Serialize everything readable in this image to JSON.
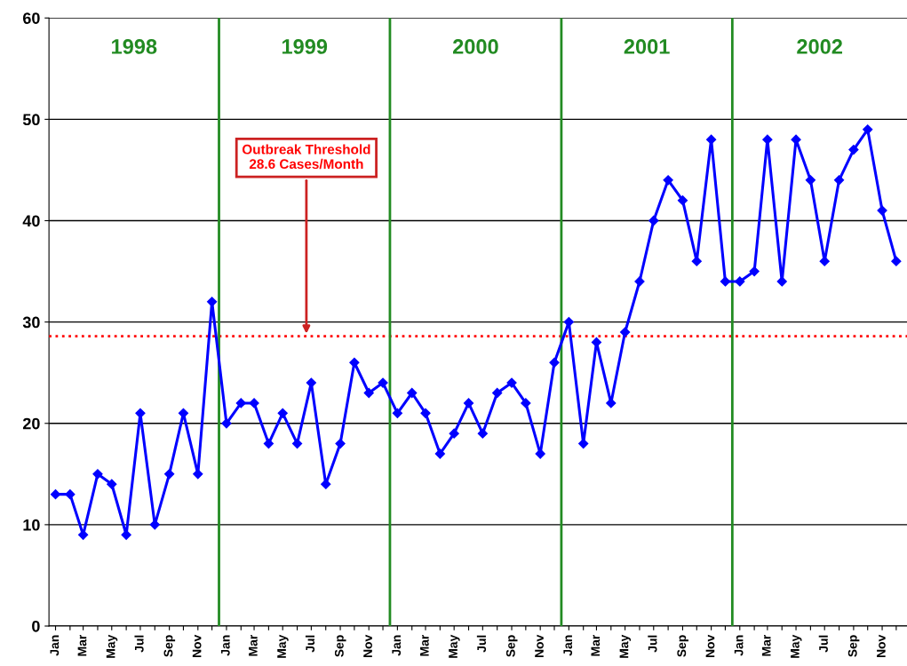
{
  "chart_data": {
    "type": "line",
    "x": [
      "1998-01",
      "1998-02",
      "1998-03",
      "1998-04",
      "1998-05",
      "1998-06",
      "1998-07",
      "1998-08",
      "1998-09",
      "1998-10",
      "1998-11",
      "1998-12",
      "1999-01",
      "1999-02",
      "1999-03",
      "1999-04",
      "1999-05",
      "1999-06",
      "1999-07",
      "1999-08",
      "1999-09",
      "1999-10",
      "1999-11",
      "1999-12",
      "2000-01",
      "2000-02",
      "2000-03",
      "2000-04",
      "2000-05",
      "2000-06",
      "2000-07",
      "2000-08",
      "2000-09",
      "2000-10",
      "2000-11",
      "2000-12",
      "2001-01",
      "2001-02",
      "2001-03",
      "2001-04",
      "2001-05",
      "2001-06",
      "2001-07",
      "2001-08",
      "2001-09",
      "2001-10",
      "2001-11",
      "2001-12",
      "2002-01",
      "2002-02",
      "2002-03",
      "2002-04",
      "2002-05",
      "2002-06",
      "2002-07",
      "2002-08",
      "2002-09",
      "2002-10",
      "2002-11",
      "2002-12"
    ],
    "series": [
      {
        "color": "#0000ff",
        "values": [
          13,
          13,
          9,
          15,
          14,
          9,
          21,
          10,
          15,
          21,
          15,
          32,
          20,
          22,
          22,
          18,
          21,
          18,
          24,
          14,
          18,
          26,
          23,
          24,
          21,
          23,
          21,
          17,
          19,
          22,
          19,
          23,
          24,
          22,
          17,
          26,
          30,
          18,
          28,
          22,
          29,
          34,
          40,
          44,
          42,
          36,
          48,
          34,
          34,
          35,
          48,
          34,
          48,
          44,
          36,
          44,
          47,
          49,
          41,
          36
        ]
      }
    ],
    "marker": "diamond",
    "line_style": "solid",
    "grid": "y",
    "legend": false,
    "xlim": [
      "1997-12-18",
      "2002-12-24"
    ],
    "xticks": [
      {
        "value": "1998-01",
        "label": "Jan"
      },
      {
        "value": "1998-02",
        "label": null
      },
      {
        "value": "1998-03",
        "label": "Mar"
      },
      {
        "value": "1998-04",
        "label": null
      },
      {
        "value": "1998-05",
        "label": "May"
      },
      {
        "value": "1998-06",
        "label": null
      },
      {
        "value": "1998-07",
        "label": "Jul"
      },
      {
        "value": "1998-08",
        "label": null
      },
      {
        "value": "1998-09",
        "label": "Sep"
      },
      {
        "value": "1998-10",
        "label": null
      },
      {
        "value": "1998-11",
        "label": "Nov"
      },
      {
        "value": "1998-12",
        "label": null
      },
      {
        "value": "1999-01",
        "label": "Jan"
      },
      {
        "value": "1999-02",
        "label": null
      },
      {
        "value": "1999-03",
        "label": "Mar"
      },
      {
        "value": "1999-04",
        "label": null
      },
      {
        "value": "1999-05",
        "label": "May"
      },
      {
        "value": "1999-06",
        "label": null
      },
      {
        "value": "1999-07",
        "label": "Jul"
      },
      {
        "value": "1999-08",
        "label": null
      },
      {
        "value": "1999-09",
        "label": "Sep"
      },
      {
        "value": "1999-10",
        "label": null
      },
      {
        "value": "1999-11",
        "label": "Nov"
      },
      {
        "value": "1999-12",
        "label": null
      },
      {
        "value": "2000-01",
        "label": "Jan"
      },
      {
        "value": "2000-02",
        "label": null
      },
      {
        "value": "2000-03",
        "label": "Mar"
      },
      {
        "value": "2000-04",
        "label": null
      },
      {
        "value": "2000-05",
        "label": "May"
      },
      {
        "value": "2000-06",
        "label": null
      },
      {
        "value": "2000-07",
        "label": "Jul"
      },
      {
        "value": "2000-08",
        "label": null
      },
      {
        "value": "2000-09",
        "label": "Sep"
      },
      {
        "value": "2000-10",
        "label": null
      },
      {
        "value": "2000-11",
        "label": "Nov"
      },
      {
        "value": "2000-12",
        "label": null
      },
      {
        "value": "2001-01",
        "label": "Jan"
      },
      {
        "value": "2001-02",
        "label": null
      },
      {
        "value": "2001-03",
        "label": "Mar"
      },
      {
        "value": "2001-04",
        "label": null
      },
      {
        "value": "2001-05",
        "label": "May"
      },
      {
        "value": "2001-06",
        "label": null
      },
      {
        "value": "2001-07",
        "label": "Jul"
      },
      {
        "value": "2001-08",
        "label": null
      },
      {
        "value": "2001-09",
        "label": "Sep"
      },
      {
        "value": "2001-10",
        "label": null
      },
      {
        "value": "2001-11",
        "label": "Nov"
      },
      {
        "value": "2001-12",
        "label": null
      },
      {
        "value": "2002-01",
        "label": "Jan"
      },
      {
        "value": "2002-02",
        "label": null
      },
      {
        "value": "2002-03",
        "label": "Mar"
      },
      {
        "value": "2002-04",
        "label": null
      },
      {
        "value": "2002-05",
        "label": "May"
      },
      {
        "value": "2002-06",
        "label": null
      },
      {
        "value": "2002-07",
        "label": "Jul"
      },
      {
        "value": "2002-08",
        "label": null
      },
      {
        "value": "2002-09",
        "label": "Sep"
      },
      {
        "value": "2002-10",
        "label": null
      },
      {
        "value": "2002-11",
        "label": "Nov"
      },
      {
        "value": "2002-12",
        "label": null
      }
    ],
    "ylim": [
      0,
      60
    ],
    "yticks": [
      0,
      10,
      20,
      30,
      40,
      50,
      60
    ],
    "ref_lines": [
      {
        "axis": "y",
        "value": 28.6,
        "label": "Outbreak Threshold\n28.6 Cases/Month",
        "color": "#ff0000",
        "line_style": "dotted"
      },
      {
        "axis": "x",
        "value": "1998-12-16",
        "color": "#228b22",
        "line_style": "solid"
      },
      {
        "axis": "x",
        "value": "1999-12-16",
        "color": "#228b22",
        "line_style": "solid"
      },
      {
        "axis": "x",
        "value": "2000-12-16",
        "color": "#228b22",
        "line_style": "solid"
      },
      {
        "axis": "x",
        "value": "2001-12-16",
        "color": "#228b22",
        "line_style": "solid"
      }
    ],
    "annotations": [
      "1998",
      "1999",
      "2000",
      "2001",
      "2002"
    ]
  }
}
